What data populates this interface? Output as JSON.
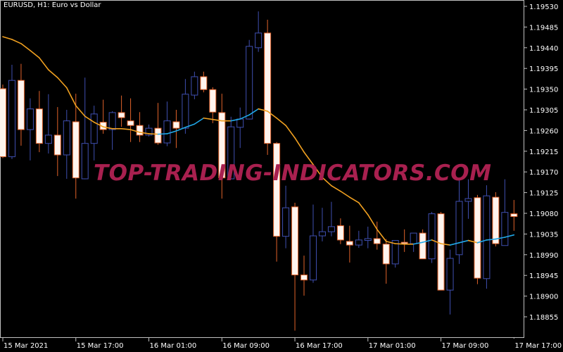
{
  "window": {
    "title": "EURUSD, H1:  Euro vs  Dollar"
  },
  "watermark": "TOP-TRADING-INDICATORS.COM",
  "colors": {
    "background": "#000000",
    "bull_outline": "#3f4fb0",
    "bull_body": "#000000",
    "bear_outline": "#e0622a",
    "bear_body": "#fff4ee",
    "ma_down": "#f0a020",
    "ma_up": "#20a8e8",
    "axis": "#c0c0c0",
    "watermark": "#a8204f"
  },
  "chart_data": {
    "type": "candlestick",
    "symbol": "EURUSD",
    "timeframe": "H1",
    "ylim": [
      1.1883,
      1.19545
    ],
    "y_ticks": [
      "1.19530",
      "1.19485",
      "1.19440",
      "1.19395",
      "1.19350",
      "1.19305",
      "1.19260",
      "1.19215",
      "1.19170",
      "1.19125",
      "1.19080",
      "1.19035",
      "1.18990",
      "1.18945",
      "1.18900",
      "1.18855"
    ],
    "x_ticks": [
      {
        "bar": 0,
        "label": "15 Mar 2021"
      },
      {
        "bar": 8,
        "label": "15 Mar 17:00"
      },
      {
        "bar": 16,
        "label": "16 Mar 01:00"
      },
      {
        "bar": 24,
        "label": "16 Mar 09:00"
      },
      {
        "bar": 32,
        "label": "16 Mar 17:00"
      },
      {
        "bar": 40,
        "label": "17 Mar 01:00"
      },
      {
        "bar": 48,
        "label": "17 Mar 09:00"
      },
      {
        "bar": 56,
        "label": "17 Mar 17:00"
      }
    ],
    "ohlc": [
      [
        1.19351,
        1.1936,
        1.192,
        1.19203
      ],
      [
        1.19203,
        1.19403,
        1.19198,
        1.19369
      ],
      [
        1.19369,
        1.19405,
        1.19227,
        1.19262
      ],
      [
        1.19262,
        1.1933,
        1.19195,
        1.19307
      ],
      [
        1.19307,
        1.19346,
        1.19213,
        1.19232
      ],
      [
        1.19232,
        1.19339,
        1.1921,
        1.1925
      ],
      [
        1.1925,
        1.19311,
        1.19161,
        1.19207
      ],
      [
        1.19207,
        1.19305,
        1.19155,
        1.19281
      ],
      [
        1.19279,
        1.1934,
        1.19112,
        1.19157
      ],
      [
        1.19155,
        1.19375,
        1.19154,
        1.19232
      ],
      [
        1.19232,
        1.19314,
        1.19195,
        1.19296
      ],
      [
        1.19278,
        1.19327,
        1.19253,
        1.19262
      ],
      [
        1.19262,
        1.19302,
        1.19218,
        1.19299
      ],
      [
        1.19299,
        1.19336,
        1.19268,
        1.19288
      ],
      [
        1.19281,
        1.1933,
        1.19235,
        1.19271
      ],
      [
        1.19271,
        1.193,
        1.19235,
        1.1925
      ],
      [
        1.1925,
        1.19273,
        1.19247,
        1.19265
      ],
      [
        1.19265,
        1.1932,
        1.19229,
        1.19233
      ],
      [
        1.19233,
        1.19323,
        1.19226,
        1.19281
      ],
      [
        1.19279,
        1.19305,
        1.19222,
        1.19265
      ],
      [
        1.19265,
        1.19372,
        1.19253,
        1.19339
      ],
      [
        1.19337,
        1.19388,
        1.19328,
        1.19377
      ],
      [
        1.19377,
        1.19388,
        1.19343,
        1.19349
      ],
      [
        1.19349,
        1.19354,
        1.19276,
        1.193
      ],
      [
        1.19299,
        1.1934,
        1.19112,
        1.19157
      ],
      [
        1.19155,
        1.1929,
        1.19154,
        1.19268
      ],
      [
        1.19267,
        1.1931,
        1.19222,
        1.19285
      ],
      [
        1.19285,
        1.19457,
        1.19284,
        1.19443
      ],
      [
        1.1944,
        1.19519,
        1.19431,
        1.19472
      ],
      [
        1.19472,
        1.19501,
        1.19207,
        1.19232
      ],
      [
        1.19232,
        1.19235,
        1.18975,
        1.1903
      ],
      [
        1.1903,
        1.1914,
        1.19004,
        1.19092
      ],
      [
        1.19094,
        1.19103,
        1.18825,
        1.18946
      ],
      [
        1.18946,
        1.18988,
        1.18901,
        1.18935
      ],
      [
        1.18935,
        1.19099,
        1.18929,
        1.19031
      ],
      [
        1.19031,
        1.19092,
        1.19019,
        1.1904
      ],
      [
        1.1904,
        1.19105,
        1.1903,
        1.19051
      ],
      [
        1.19053,
        1.19069,
        1.19013,
        1.19022
      ],
      [
        1.19019,
        1.19053,
        1.18973,
        1.19011
      ],
      [
        1.19011,
        1.19042,
        1.19005,
        1.19022
      ],
      [
        1.19021,
        1.19051,
        1.19004,
        1.19025
      ],
      [
        1.19025,
        1.19062,
        1.19001,
        1.19014
      ],
      [
        1.19013,
        1.19024,
        1.18927,
        1.1897
      ],
      [
        1.1897,
        1.19021,
        1.18962,
        1.19021
      ],
      [
        1.19017,
        1.19045,
        1.18996,
        1.19014
      ],
      [
        1.19014,
        1.19037,
        1.18996,
        1.19037
      ],
      [
        1.19037,
        1.19045,
        1.18981,
        1.18981
      ],
      [
        1.18981,
        1.19083,
        1.18972,
        1.19079
      ],
      [
        1.19079,
        1.19083,
        1.18913,
        1.18913
      ],
      [
        1.18913,
        1.19001,
        1.1886,
        1.18982
      ],
      [
        1.1899,
        1.19154,
        1.1897,
        1.19106
      ],
      [
        1.19106,
        1.19154,
        1.19068,
        1.19112
      ],
      [
        1.19114,
        1.1912,
        1.18926,
        1.18939
      ],
      [
        1.18938,
        1.19141,
        1.18916,
        1.19118
      ],
      [
        1.19115,
        1.19126,
        1.19008,
        1.19014
      ],
      [
        1.1901,
        1.19154,
        1.1901,
        1.19082
      ],
      [
        1.19079,
        1.19109,
        1.19042,
        1.19073
      ]
    ],
    "ma": [
      1.19464,
      1.19458,
      1.19449,
      1.19434,
      1.19418,
      1.19392,
      1.19375,
      1.19353,
      1.19314,
      1.19291,
      1.19278,
      1.19268,
      1.19264,
      1.19264,
      1.19262,
      1.19256,
      1.19253,
      1.19252,
      1.19253,
      1.19259,
      1.19267,
      1.19274,
      1.19287,
      1.19284,
      1.19281,
      1.19281,
      1.19285,
      1.19294,
      1.19307,
      1.19302,
      1.19287,
      1.19271,
      1.19244,
      1.19213,
      1.19186,
      1.19158,
      1.1914,
      1.19128,
      1.19115,
      1.19103,
      1.19077,
      1.19045,
      1.19019,
      1.19014,
      1.19013,
      1.19013,
      1.19017,
      1.19022,
      1.19014,
      1.19011,
      1.19016,
      1.19021,
      1.19016,
      1.19022,
      1.19024,
      1.19028,
      1.19033
    ]
  }
}
